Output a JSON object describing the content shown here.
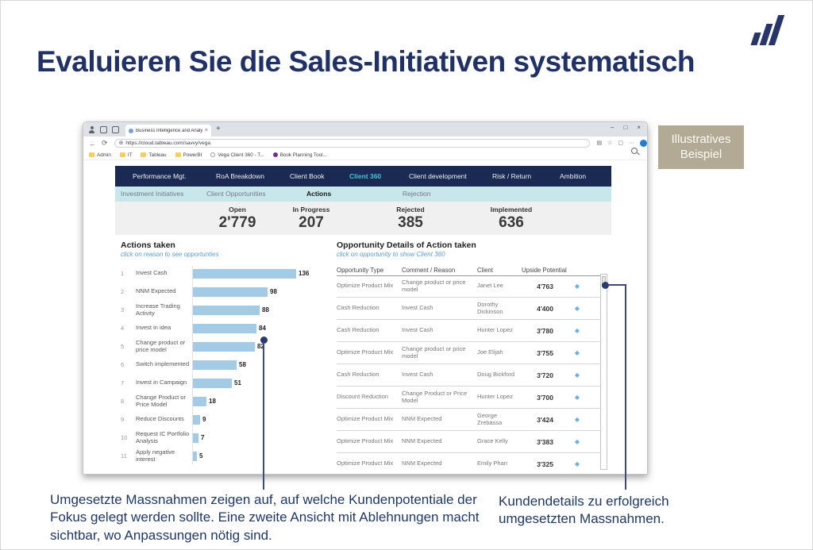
{
  "slide": {
    "title": "Evaluieren Sie die Sales-Initiativen systematisch",
    "badge": "Illustratives Beispiel",
    "note_left": "Umgesetzte Massnahmen zeigen auf, auf welche Kundenpotentiale der Fokus gelegt werden sollte. Eine zweite Ansicht mit Ablehnungen macht sichtbar, wo Anpassungen nötig sind.",
    "note_right": "Kundendetails zu erfolgreich umgesetzten Massnahmen."
  },
  "browser": {
    "tab_title": "Business Intelligence and Analyt...",
    "url": "https://cloud.tableau.com/savvy/vega",
    "icons": {
      "back": "←",
      "refresh": "⟳",
      "globe": "⊕",
      "plus": "+",
      "tab_close": "×",
      "minimize": "–",
      "maximize": "□",
      "close": "×",
      "reader": "▤",
      "star": "☆",
      "extension": "▢",
      "menu": "···"
    },
    "bookmarks": [
      {
        "icon": "folder",
        "label": "Admin"
      },
      {
        "icon": "folder",
        "label": "IT"
      },
      {
        "icon": "folder",
        "label": "Tableau"
      },
      {
        "icon": "folder",
        "label": "PowerBI"
      },
      {
        "icon": "gear",
        "label": "Vega Client 360 - T..."
      },
      {
        "icon": "dot",
        "label": "Book Planning Tool..."
      }
    ]
  },
  "dashboard": {
    "nav": [
      {
        "label": "Performance Mgt.",
        "active": false
      },
      {
        "label": "RoA Breakdown",
        "active": false
      },
      {
        "label": "Client Book",
        "active": false
      },
      {
        "label": "Client 360",
        "active": true
      },
      {
        "label": "Client development",
        "active": false
      },
      {
        "label": "Risk / Return",
        "active": false
      },
      {
        "label": "Ambition",
        "active": false
      }
    ],
    "subnav": [
      {
        "label": "Investment Initiatives",
        "active": false
      },
      {
        "label": "Client Opportunities",
        "active": false
      },
      {
        "label": "Actions",
        "active": true
      },
      {
        "label": "Rejection",
        "active": false
      }
    ],
    "kpis": [
      {
        "label": "Open",
        "value": "2'779"
      },
      {
        "label": "In Progress",
        "value": "207"
      },
      {
        "label": "Rejected",
        "value": "385"
      },
      {
        "label": "Implemented",
        "value": "636"
      }
    ],
    "actions_chart": {
      "title": "Actions taken",
      "subtitle": "click on reason to see opportunties",
      "rows": [
        {
          "rank": 1,
          "label": "Invest Cash",
          "value": 136
        },
        {
          "rank": 2,
          "label": "NNM Expected",
          "value": 98
        },
        {
          "rank": 3,
          "label": "Increase Trading Activity",
          "value": 88
        },
        {
          "rank": 4,
          "label": "Invest in idea",
          "value": 84
        },
        {
          "rank": 5,
          "label": "Change product or price model",
          "value": 82
        },
        {
          "rank": 6,
          "label": "Switch implemented",
          "value": 58
        },
        {
          "rank": 7,
          "label": "Invest in Campaign",
          "value": 51
        },
        {
          "rank": 8,
          "label": "Change Product or Price Model",
          "value": 18
        },
        {
          "rank": 9,
          "label": "Reduce Discounts",
          "value": 9
        },
        {
          "rank": 10,
          "label": "Request IC Portfolio Analysis",
          "value": 7
        },
        {
          "rank": 11,
          "label": "Apply negative interest",
          "value": 5
        }
      ]
    },
    "table": {
      "title": "Opportunity Details of Action taken",
      "subtitle": "click on opportunity to show Client 360",
      "columns": [
        "Opportunity Type",
        "Comment / Reason",
        "Client",
        "Upside Potential"
      ],
      "diamond_icon": "◆",
      "rows": [
        {
          "type": "Optimize Product Mix",
          "reason": "Change product or price model",
          "client": "Janet Lee",
          "value": "4'763"
        },
        {
          "type": "Cash Reduction",
          "reason": "Invest Cash",
          "client": "Dorothy Dickinson",
          "value": "4'400"
        },
        {
          "type": "Cash Reduction",
          "reason": "Invest Cash",
          "client": "Hunter Lopez",
          "value": "3'780"
        },
        {
          "type": "Optimize Product Mix",
          "reason": "Change product or price model",
          "client": "Joe Elijah",
          "value": "3'755"
        },
        {
          "type": "Cash Reduction",
          "reason": "Invest Cash",
          "client": "Doug Bickford",
          "value": "3'720"
        },
        {
          "type": "Discount Reduction",
          "reason": "Change Product or Price Model",
          "client": "Hunter Lopez",
          "value": "3'700"
        },
        {
          "type": "Optimize Product Mix",
          "reason": "NNM Expected",
          "client": "George Zrebassa",
          "value": "3'424"
        },
        {
          "type": "Optimize Product Mix",
          "reason": "NNM Expected",
          "client": "Grace Kelly",
          "value": "3'383"
        },
        {
          "type": "Optimize Product Mix",
          "reason": "NNM Expected",
          "client": "Emily Phan",
          "value": "3'325"
        }
      ]
    }
  },
  "chart_data": {
    "type": "bar",
    "orientation": "horizontal",
    "title": "Actions taken",
    "categories": [
      "Invest Cash",
      "NNM Expected",
      "Increase Trading Activity",
      "Invest in idea",
      "Change product or price model",
      "Switch implemented",
      "Invest in Campaign",
      "Change Product or Price Model",
      "Reduce Discounts",
      "Request IC Portfolio Analysis",
      "Apply negative interest"
    ],
    "values": [
      136,
      98,
      88,
      84,
      82,
      58,
      51,
      18,
      9,
      7,
      5
    ],
    "xlabel": "",
    "ylabel": "",
    "xlim": [
      0,
      140
    ],
    "grid": false,
    "legend": false
  },
  "colors": {
    "navy": "#1b2a52",
    "cyan": "#45c4d5",
    "bar_blue": "#a4cbe6",
    "badge_tan": "#b3aa95",
    "annotation_navy": "#1f3864",
    "title_navy": "#1f3166"
  }
}
